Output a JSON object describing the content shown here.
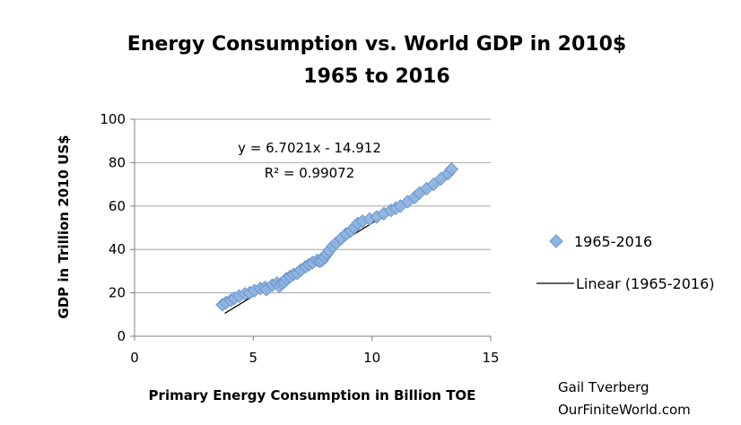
{
  "chart_data": {
    "type": "scatter",
    "title_line1": "Energy Consumption vs. World GDP in 2010$",
    "title_line2": "1965 to 2016",
    "xlabel": "Primary Energy Consumption in Billion TOE",
    "ylabel": "GDP in Trillion 2010 US$",
    "xlim": [
      0,
      15
    ],
    "ylim": [
      0,
      100
    ],
    "x_ticks": [
      0,
      5,
      10,
      15
    ],
    "y_ticks": [
      0,
      20,
      40,
      60,
      80,
      100
    ],
    "grid": "horizontal",
    "legend_position": "right",
    "series": [
      {
        "name": "1965-2016",
        "marker": "diamond",
        "color": "#8eb4e3",
        "x": [
          3.7,
          3.85,
          4.05,
          4.2,
          4.4,
          4.65,
          4.85,
          5.05,
          5.3,
          5.5,
          5.55,
          5.8,
          6.0,
          6.1,
          6.2,
          6.3,
          6.4,
          6.55,
          6.7,
          6.85,
          7.0,
          7.2,
          7.35,
          7.5,
          7.7,
          7.8,
          7.9,
          8.0,
          8.1,
          8.2,
          8.35,
          8.5,
          8.7,
          8.9,
          9.1,
          9.25,
          9.4,
          9.6,
          9.9,
          10.2,
          10.5,
          10.8,
          11.0,
          11.2,
          11.5,
          11.8,
          12.0,
          12.3,
          12.6,
          12.9,
          13.2,
          13.35
        ],
        "y": [
          14.5,
          15.5,
          16.5,
          17.5,
          18.5,
          19.5,
          20.0,
          21.0,
          22.0,
          22.5,
          21.5,
          23.5,
          24.5,
          23.0,
          24.5,
          25.0,
          26.5,
          27.5,
          28.5,
          29.0,
          30.5,
          32.0,
          33.0,
          34.0,
          35.0,
          34.5,
          35.0,
          36.5,
          38.0,
          39.5,
          41.5,
          43.0,
          45.0,
          47.0,
          48.5,
          50.0,
          52.0,
          53.0,
          54.0,
          55.0,
          56.5,
          58.0,
          59.0,
          60.0,
          62.0,
          64.0,
          66.0,
          68.0,
          70.0,
          72.5,
          75.0,
          77.0
        ]
      }
    ],
    "trendline": {
      "name": "Linear (1965-2016)",
      "slope": 6.7021,
      "intercept": -14.912,
      "x_range": [
        3.8,
        13.3
      ],
      "color": "#000000"
    },
    "annotations": {
      "equation": "y = 6.7021x - 14.912",
      "r_squared": "R² = 0.99072"
    }
  },
  "credit": {
    "line1": "Gail Tverberg",
    "line2": "OurFiniteWorld.com"
  }
}
